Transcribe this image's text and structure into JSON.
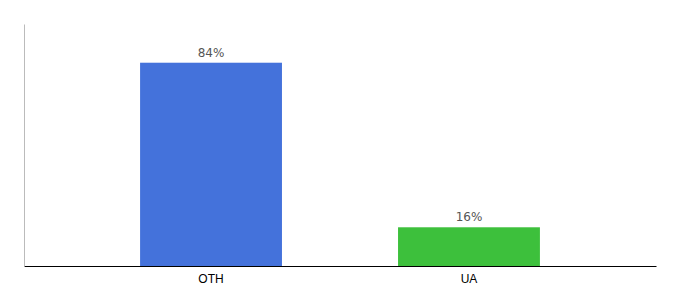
{
  "chart_data": {
    "type": "bar",
    "categories": [
      "OTH",
      "UA"
    ],
    "values": [
      84,
      16
    ],
    "colors": [
      "#4472db",
      "#3dc03c"
    ],
    "value_labels": [
      "84%",
      "16%"
    ],
    "data_labels": true,
    "ylim": [
      0,
      100
    ],
    "tick_labels": "x"
  }
}
